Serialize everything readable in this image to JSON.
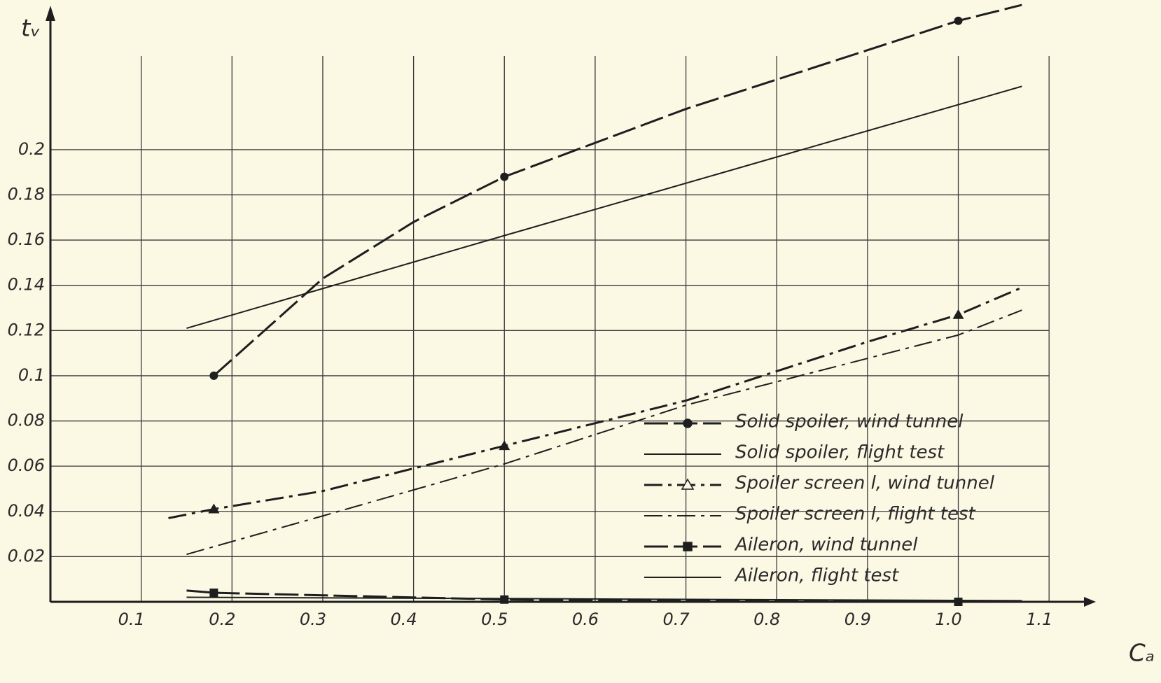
{
  "chart_data": {
    "type": "line",
    "x_label": "Cₐ",
    "y_label": "tᵥ",
    "xlim": [
      0,
      1.15
    ],
    "ylim": [
      0,
      0.26
    ],
    "xticks": [
      0.1,
      0.2,
      0.3,
      0.4,
      0.5,
      0.6,
      0.7,
      0.8,
      0.9,
      {
        "value": 1,
        "label": "1.0"
      },
      1.1
    ],
    "yticks": [
      0.02,
      0.04,
      0.06,
      0.08,
      0.1,
      0.12,
      0.14,
      0.16,
      0.18,
      0.2
    ],
    "grid": true,
    "legend": "lower right",
    "series": [
      {
        "name": "Solid spoiler, wind tunnel",
        "color": "#1e1e1e",
        "width": 3,
        "dash": "long",
        "marker": "circle",
        "markers": [
          0,
          3,
          8
        ],
        "x": [
          0.18,
          0.3,
          0.4,
          0.5,
          0.6,
          0.7,
          0.8,
          0.9,
          1.0,
          1.07
        ],
        "values": [
          0.1,
          0.143,
          0.168,
          0.188,
          0.203,
          0.218,
          0.231,
          0.244,
          0.257,
          0.264
        ]
      },
      {
        "name": "Solid spoiler, flight test",
        "color": "#1e1e1e",
        "width": 2,
        "dash": "solid",
        "marker": "none",
        "x": [
          0.15,
          0.5,
          1.07
        ],
        "values": [
          0.121,
          0.162,
          0.228
        ]
      },
      {
        "name": "Spoiler screen l, wind tunnel",
        "color": "#1e1e1e",
        "width": 3,
        "dash": "dashdot",
        "marker": "triangle",
        "markers": [
          1,
          3,
          6
        ],
        "x": [
          0.13,
          0.18,
          0.3,
          0.5,
          0.7,
          0.9,
          1.0,
          1.07
        ],
        "values": [
          0.037,
          0.041,
          0.049,
          0.069,
          0.089,
          0.115,
          0.127,
          0.139
        ]
      },
      {
        "name": "Spoiler screen l, flight test",
        "color": "#1e1e1e",
        "width": 2,
        "dash": "dashdot",
        "marker": "none",
        "x": [
          0.15,
          0.3,
          0.5,
          0.7,
          1.0,
          1.07
        ],
        "values": [
          0.021,
          0.038,
          0.061,
          0.087,
          0.118,
          0.129
        ]
      },
      {
        "name": "Aileron, wind tunnel",
        "color": "#1e1e1e",
        "width": 3,
        "dash": "long",
        "marker": "square",
        "markers": [
          1,
          2,
          3
        ],
        "x": [
          0.15,
          0.18,
          0.5,
          1.0,
          1.07
        ],
        "values": [
          0.005,
          0.004,
          0.001,
          0.0,
          0.0
        ]
      },
      {
        "name": "Aileron, flight test",
        "color": "#1e1e1e",
        "width": 2,
        "dash": "solid",
        "marker": "none",
        "x": [
          0.15,
          1.07
        ],
        "values": [
          0.002,
          0.0005
        ]
      }
    ]
  }
}
